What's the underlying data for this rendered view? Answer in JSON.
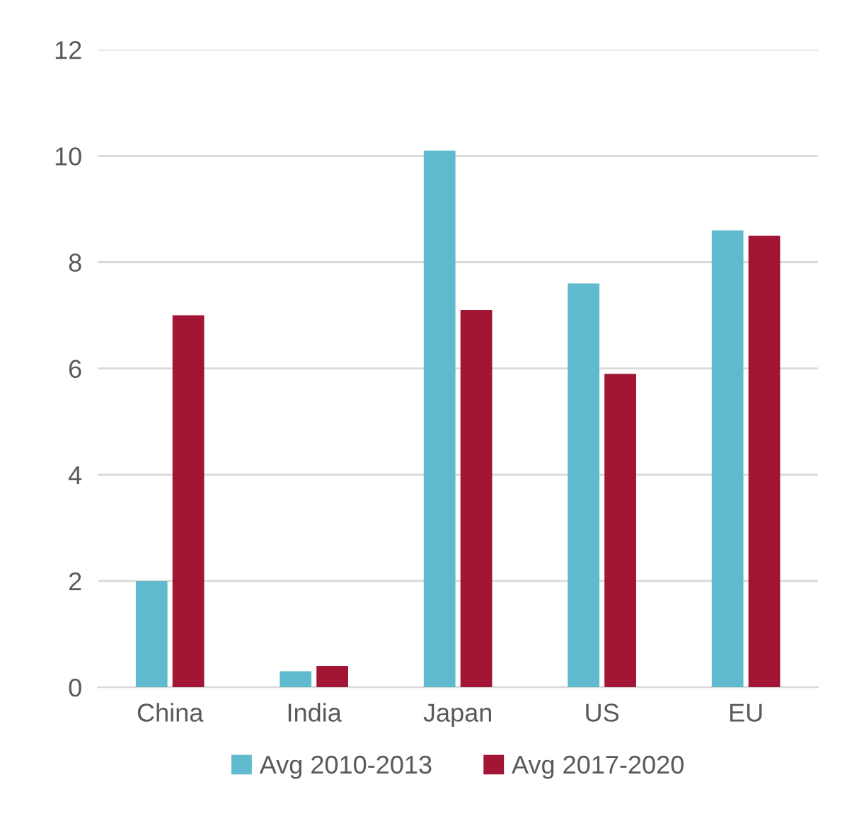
{
  "chart_data": {
    "type": "bar",
    "categories": [
      "China",
      "India",
      "Japan",
      "US",
      "EU"
    ],
    "series": [
      {
        "name": "Avg 2010-2013",
        "color": "#5fbacd",
        "values": [
          2.0,
          0.3,
          10.1,
          7.6,
          8.6
        ]
      },
      {
        "name": "Avg 2017-2020",
        "color": "#a31535",
        "values": [
          7.0,
          0.4,
          7.1,
          5.9,
          8.5
        ]
      }
    ],
    "ylim": [
      0,
      12
    ],
    "yticks": [
      0,
      2,
      4,
      6,
      8,
      10,
      12
    ],
    "grid": "y",
    "legend": "bottom"
  }
}
